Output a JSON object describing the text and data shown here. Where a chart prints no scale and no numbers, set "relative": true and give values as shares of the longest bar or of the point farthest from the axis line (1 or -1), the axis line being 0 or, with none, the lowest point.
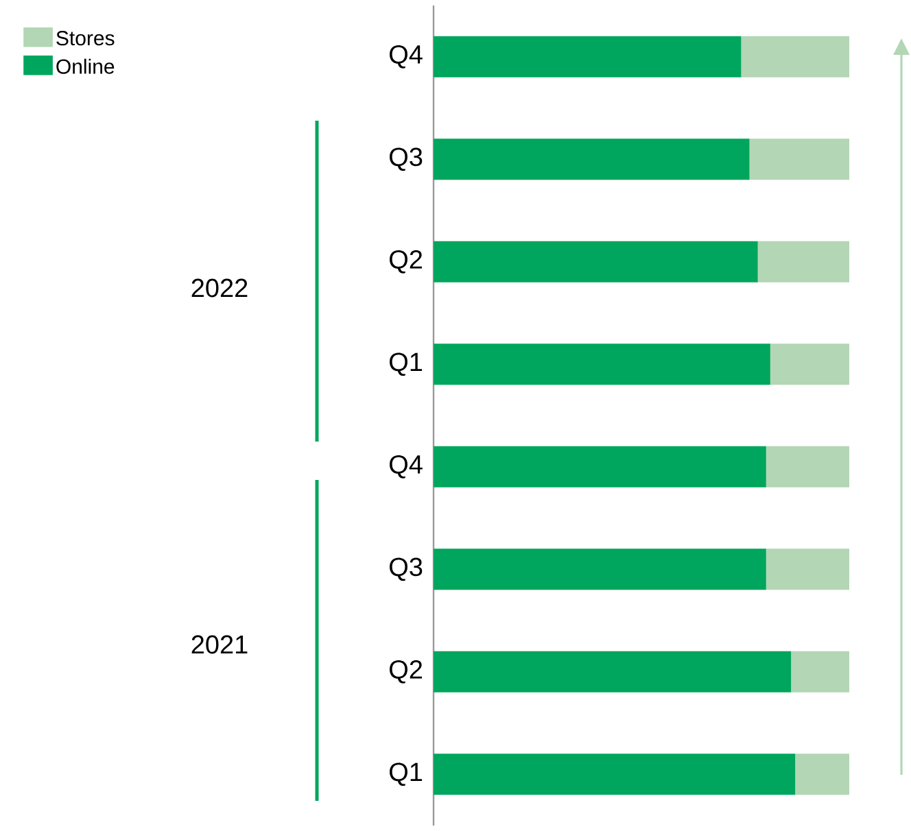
{
  "chart_data": {
    "type": "bar",
    "orientation": "horizontal",
    "stacked": true,
    "relative": true,
    "legend": "top left",
    "categories": [
      "Q4",
      "Q3",
      "Q2",
      "Q1",
      "Q4",
      "Q3",
      "Q2",
      "Q1"
    ],
    "series": [
      {
        "name": "Online",
        "color": "#00a65d",
        "values": [
          0.74,
          0.76,
          0.78,
          0.81,
          0.8,
          0.8,
          0.86,
          0.87
        ]
      },
      {
        "name": "Stores",
        "color": "#b3d6b5",
        "values": [
          0.26,
          0.24,
          0.22,
          0.19,
          0.2,
          0.2,
          0.14,
          0.13
        ]
      }
    ],
    "annotations": [
      "2022",
      "2021"
    ]
  }
}
